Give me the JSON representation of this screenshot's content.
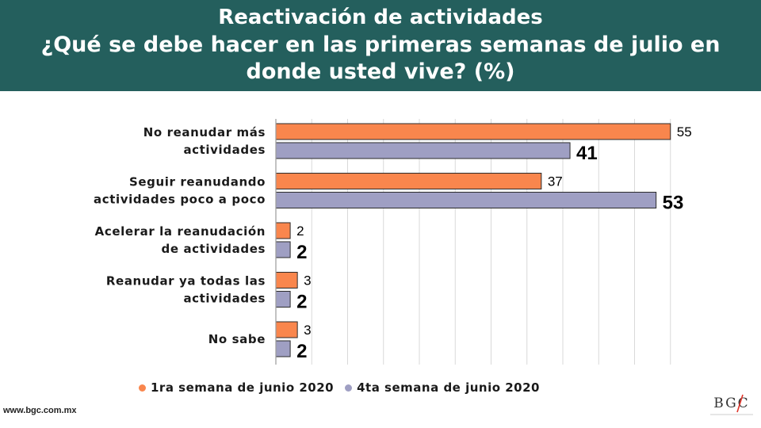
{
  "header": {
    "title_line1": "Reactivación de actividades",
    "title_line2": "¿Qué se debe hacer en las primeras semanas de julio en donde usted vive? (%)"
  },
  "chart_data": {
    "type": "bar",
    "orientation": "horizontal",
    "categories": [
      [
        "No reanudar más",
        "actividades"
      ],
      [
        "Seguir reanudando",
        "actividades poco a poco"
      ],
      [
        "Acelerar la reanudación",
        "de actividades"
      ],
      [
        "Reanudar ya todas las",
        "actividades"
      ],
      [
        "No sabe"
      ]
    ],
    "series": [
      {
        "name": "1ra semana de junio 2020",
        "values": [
          55,
          37,
          2,
          3,
          3
        ],
        "color": "#f9864d"
      },
      {
        "name": "4ta semana de junio 2020",
        "values": [
          41,
          53,
          2,
          2,
          2
        ],
        "color": "#9f9fc3"
      }
    ],
    "xlim": [
      0,
      60
    ],
    "grid": true,
    "legend_position": "bottom"
  },
  "footer": {
    "url": "www.bgc.com.mx",
    "logo_text": "BGC"
  }
}
